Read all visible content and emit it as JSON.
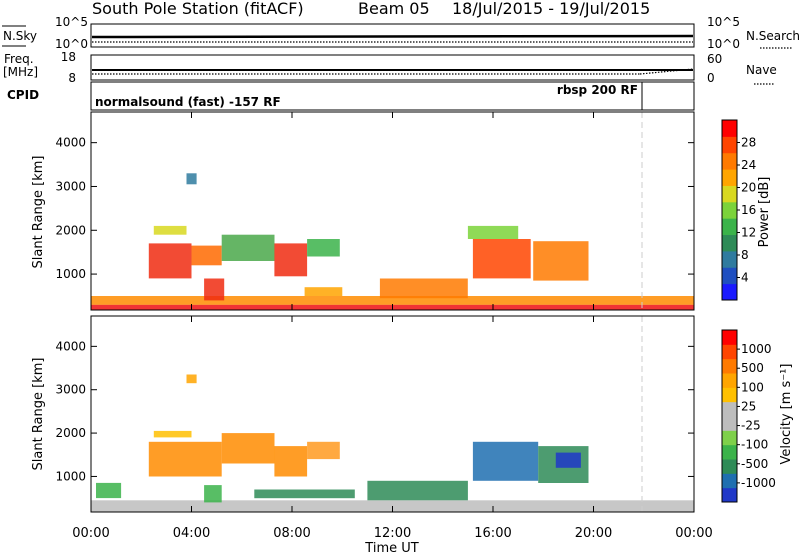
{
  "header": {
    "station": "South Pole Station (fitACF)",
    "beam": "Beam 05",
    "dates": "18/Jul/2015 - 19/Jul/2015"
  },
  "top_panels": {
    "nsky_label": "N.Sky",
    "nsky_ticks": [
      "10^5",
      "10^0"
    ],
    "nsearch_label": "N.Search",
    "nsearch_ticks": [
      "10^5",
      "10^0"
    ],
    "freq_label": "Freq.",
    "freq_unit": "[MHz]",
    "freq_ticks": [
      "18",
      "8"
    ],
    "nave_label": "Nave",
    "nave_ticks": [
      "60",
      "0"
    ],
    "cpid_label": "CPID",
    "cpid_modes": [
      "normalsound (fast) -157 RF",
      "rbsp 200 RF"
    ]
  },
  "chart_data": [
    {
      "type": "heatmap",
      "panel": "power",
      "title": "",
      "ylabel": "Slant Range [km]",
      "xlabel": "",
      "ylim": [
        180,
        4700
      ],
      "yticks": [
        "1000",
        "2000",
        "3000",
        "4000"
      ],
      "xlim": [
        0,
        24
      ],
      "colorbar": {
        "label": "Power [dB]",
        "ticks": [
          "4",
          "8",
          "12",
          "16",
          "20",
          "24",
          "28"
        ],
        "colors": [
          "#1a1aff",
          "#1f4fc0",
          "#2f7b9f",
          "#2e8b57",
          "#3bb34a",
          "#7bd33a",
          "#d8d820",
          "#ffa500",
          "#ff7a00",
          "#ff4500",
          "#ff0000"
        ]
      },
      "echo_regions": [
        {
          "t0": 0.0,
          "t1": 24.0,
          "r0": 180,
          "r1": 300,
          "color": "#ee1111"
        },
        {
          "t0": 0.0,
          "t1": 24.0,
          "r0": 300,
          "r1": 500,
          "color": "#ff8c00"
        },
        {
          "t0": 2.3,
          "t1": 4.0,
          "r0": 900,
          "r1": 1700,
          "color": "#f02b10"
        },
        {
          "t0": 4.0,
          "t1": 5.2,
          "r0": 1200,
          "r1": 1650,
          "color": "#ff6a00"
        },
        {
          "t0": 5.2,
          "t1": 7.3,
          "r0": 1300,
          "r1": 1900,
          "color": "#4aa84a"
        },
        {
          "t0": 7.3,
          "t1": 8.6,
          "r0": 950,
          "r1": 1700,
          "color": "#f02b10"
        },
        {
          "t0": 8.6,
          "t1": 9.9,
          "r0": 1400,
          "r1": 1800,
          "color": "#3bb34a"
        },
        {
          "t0": 3.8,
          "t1": 4.2,
          "r0": 3050,
          "r1": 3300,
          "color": "#2f7b9f"
        },
        {
          "t0": 2.5,
          "t1": 3.8,
          "r0": 1900,
          "r1": 2100,
          "color": "#d8d820"
        },
        {
          "t0": 8.5,
          "t1": 10.0,
          "r0": 500,
          "r1": 700,
          "color": "#ffa500"
        },
        {
          "t0": 11.5,
          "t1": 15.0,
          "r0": 450,
          "r1": 900,
          "color": "#ff7a00"
        },
        {
          "t0": 15.2,
          "t1": 17.5,
          "r0": 900,
          "r1": 1800,
          "color": "#ff4500"
        },
        {
          "t0": 17.6,
          "t1": 19.8,
          "r0": 850,
          "r1": 1750,
          "color": "#ff7a00"
        },
        {
          "t0": 15.0,
          "t1": 17.0,
          "r0": 1800,
          "r1": 2100,
          "color": "#7bd33a"
        },
        {
          "t0": 4.5,
          "t1": 5.3,
          "r0": 400,
          "r1": 900,
          "color": "#f02b10"
        }
      ]
    },
    {
      "type": "heatmap",
      "panel": "velocity",
      "title": "",
      "ylabel": "Slant Range [km]",
      "xlabel": "Time UT",
      "ylim": [
        180,
        4700
      ],
      "yticks": [
        "1000",
        "2000",
        "3000",
        "4000"
      ],
      "xlim": [
        0,
        24
      ],
      "xticks": [
        "00:00",
        "04:00",
        "08:00",
        "12:00",
        "16:00",
        "20:00",
        "00:00"
      ],
      "colorbar": {
        "label": "Velocity [m s⁻¹]",
        "ticks": [
          "1000",
          "500",
          "100",
          "25",
          "-25",
          "-100",
          "-500",
          "-1000"
        ],
        "colors": [
          "#2038c8",
          "#1f6fb0",
          "#2e8b57",
          "#3bb34a",
          "#7ed04a",
          "#bdbdbd",
          "#bdbdbd",
          "#ffc000",
          "#ffa500",
          "#ff7a00",
          "#ff4500",
          "#ff0000"
        ]
      },
      "echo_regions": [
        {
          "t0": 0.0,
          "t1": 24.0,
          "r0": 180,
          "r1": 450,
          "color": "#bdbdbd"
        },
        {
          "t0": 2.3,
          "t1": 5.2,
          "r0": 1000,
          "r1": 1800,
          "color": "#ff8c00"
        },
        {
          "t0": 5.2,
          "t1": 7.3,
          "r0": 1300,
          "r1": 2000,
          "color": "#ff8c00"
        },
        {
          "t0": 7.3,
          "t1": 8.6,
          "r0": 1000,
          "r1": 1700,
          "color": "#ff8c00"
        },
        {
          "t0": 8.6,
          "t1": 9.9,
          "r0": 1400,
          "r1": 1800,
          "color": "#ff9a20"
        },
        {
          "t0": 3.8,
          "t1": 4.2,
          "r0": 3150,
          "r1": 3350,
          "color": "#ffa500"
        },
        {
          "t0": 2.5,
          "t1": 4.0,
          "r0": 1900,
          "r1": 2050,
          "color": "#ffc000"
        },
        {
          "t0": 0.2,
          "t1": 1.2,
          "r0": 500,
          "r1": 850,
          "color": "#3bb34a"
        },
        {
          "t0": 6.5,
          "t1": 10.5,
          "r0": 500,
          "r1": 700,
          "color": "#2e8b57"
        },
        {
          "t0": 11.0,
          "t1": 15.0,
          "r0": 450,
          "r1": 900,
          "color": "#2e8b57"
        },
        {
          "t0": 15.2,
          "t1": 17.8,
          "r0": 900,
          "r1": 1800,
          "color": "#1f6fb0"
        },
        {
          "t0": 17.8,
          "t1": 19.8,
          "r0": 850,
          "r1": 1700,
          "color": "#2e8b57"
        },
        {
          "t0": 18.5,
          "t1": 19.5,
          "r0": 1200,
          "r1": 1550,
          "color": "#2038c8"
        },
        {
          "t0": 4.5,
          "t1": 5.2,
          "r0": 400,
          "r1": 800,
          "color": "#3bb34a"
        }
      ]
    }
  ]
}
